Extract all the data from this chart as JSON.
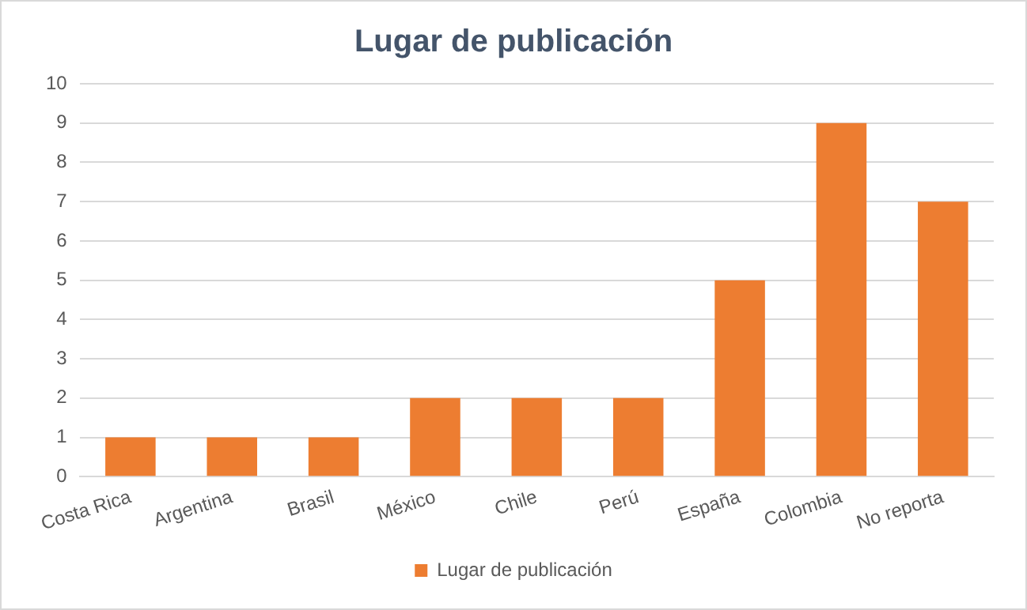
{
  "chart_data": {
    "type": "bar",
    "title": "Lugar de publicación",
    "categories": [
      "Costa Rica",
      "Argentina",
      "Brasil",
      "México",
      "Chile",
      "Perú",
      "España",
      "Colombia",
      "No reporta"
    ],
    "series": [
      {
        "name": "Lugar de publicación",
        "color": "#ed7d31",
        "values": [
          1,
          1,
          1,
          2,
          2,
          2,
          5,
          9,
          7
        ]
      }
    ],
    "ylim": [
      0,
      10
    ],
    "yticks": [
      0,
      1,
      2,
      3,
      4,
      5,
      6,
      7,
      8,
      9,
      10
    ],
    "grid": "y",
    "legend": "bottom"
  }
}
